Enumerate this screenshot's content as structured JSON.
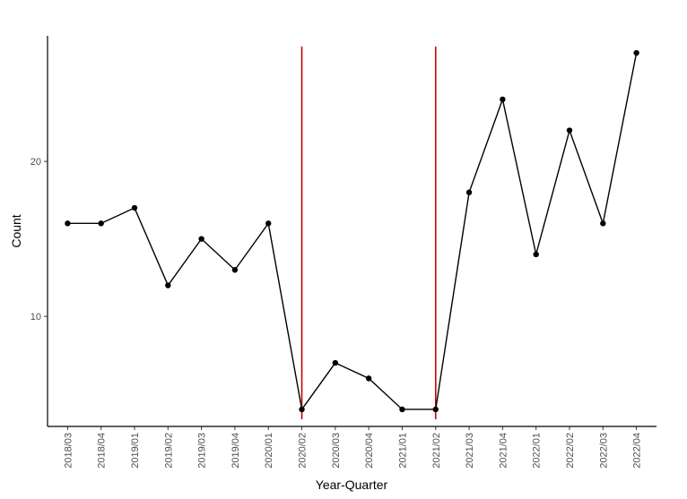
{
  "chart_data": {
    "type": "line",
    "x_label": "Year-Quarter",
    "y_label": "Count",
    "categories": [
      "2018/03",
      "2018/04",
      "2019/01",
      "2019/02",
      "2019/03",
      "2019/04",
      "2020/01",
      "2020/02",
      "2020/03",
      "2020/04",
      "2021/01",
      "2021/02",
      "2021/03",
      "2021/04",
      "2022/01",
      "2022/02",
      "2022/03",
      "2022/04"
    ],
    "series": [
      {
        "color": "#000000",
        "values": [
          16,
          16,
          17,
          12,
          15,
          13,
          16,
          4,
          7,
          6,
          4,
          4,
          18,
          24,
          14,
          22,
          16,
          27
        ]
      }
    ],
    "vlines": [
      "2020/02",
      "2021/02"
    ],
    "vline_color": "#cc0000",
    "ylim": [
      2.9,
      28.1
    ],
    "yticks": [
      10,
      20
    ],
    "grid": false
  }
}
